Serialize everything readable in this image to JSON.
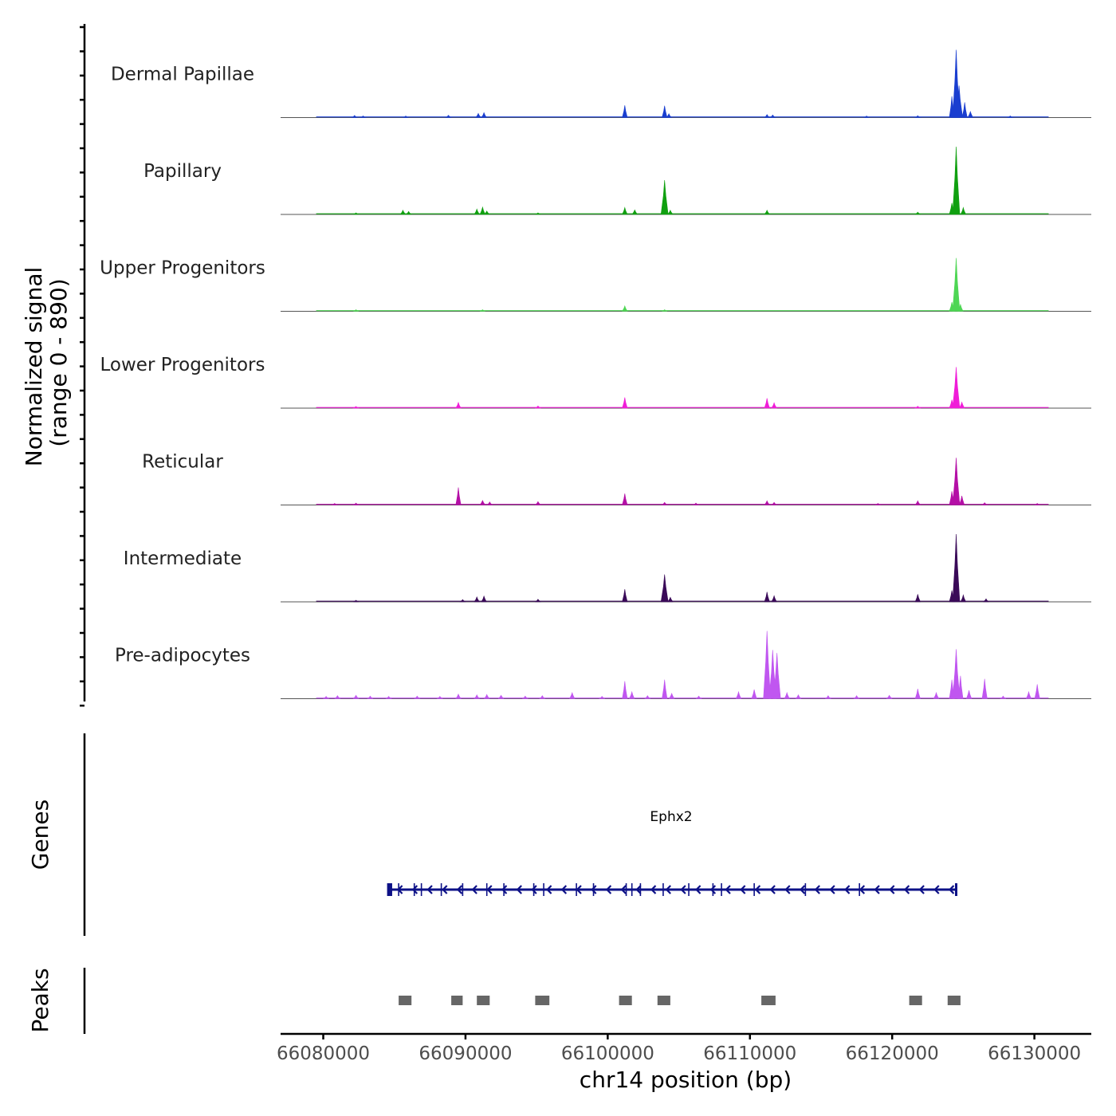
{
  "chart_data": {
    "type": "area",
    "title": "",
    "xlabel": "chr14 position (bp)",
    "ylabel": "Normalized signal",
    "ylabel_range": "(range 0 - 890)",
    "xlim": [
      66077000,
      66134000
    ],
    "ylim": [
      0,
      890
    ],
    "x_ticks": [
      66080000,
      66090000,
      66100000,
      66110000,
      66120000,
      66130000
    ],
    "x_tick_labels": [
      "66080000",
      "66090000",
      "66100000",
      "66110000",
      "66120000",
      "66130000"
    ],
    "series": [
      {
        "name": "Dermal Papillae",
        "color": "#1a3ed0",
        "peaks": [
          {
            "pos": 66082200,
            "value": 28
          },
          {
            "pos": 66082800,
            "value": 22
          },
          {
            "pos": 66085800,
            "value": 15
          },
          {
            "pos": 66088800,
            "value": 30
          },
          {
            "pos": 66090900,
            "value": 55
          },
          {
            "pos": 66091300,
            "value": 65
          },
          {
            "pos": 66101200,
            "value": 160
          },
          {
            "pos": 66104000,
            "value": 155
          },
          {
            "pos": 66104300,
            "value": 50
          },
          {
            "pos": 66111200,
            "value": 40
          },
          {
            "pos": 66111600,
            "value": 35
          },
          {
            "pos": 66118200,
            "value": 18
          },
          {
            "pos": 66121800,
            "value": 25
          },
          {
            "pos": 66124200,
            "value": 280
          },
          {
            "pos": 66124500,
            "value": 890
          },
          {
            "pos": 66124700,
            "value": 420
          },
          {
            "pos": 66125100,
            "value": 200
          },
          {
            "pos": 66125500,
            "value": 80
          },
          {
            "pos": 66128300,
            "value": 22
          }
        ]
      },
      {
        "name": "Papillary",
        "color": "#10a010",
        "peaks": [
          {
            "pos": 66082300,
            "value": 18
          },
          {
            "pos": 66085600,
            "value": 55
          },
          {
            "pos": 66086000,
            "value": 40
          },
          {
            "pos": 66090800,
            "value": 70
          },
          {
            "pos": 66091200,
            "value": 95
          },
          {
            "pos": 66091500,
            "value": 45
          },
          {
            "pos": 66095100,
            "value": 20
          },
          {
            "pos": 66101200,
            "value": 90
          },
          {
            "pos": 66101900,
            "value": 60
          },
          {
            "pos": 66104000,
            "value": 450
          },
          {
            "pos": 66104400,
            "value": 55
          },
          {
            "pos": 66111200,
            "value": 55
          },
          {
            "pos": 66121800,
            "value": 30
          },
          {
            "pos": 66124200,
            "value": 150
          },
          {
            "pos": 66124500,
            "value": 890
          },
          {
            "pos": 66125000,
            "value": 90
          }
        ]
      },
      {
        "name": "Upper Progenitors",
        "color": "#4ed654",
        "peaks": [
          {
            "pos": 66082300,
            "value": 12
          },
          {
            "pos": 66091200,
            "value": 15
          },
          {
            "pos": 66101200,
            "value": 70
          },
          {
            "pos": 66104000,
            "value": 18
          },
          {
            "pos": 66124200,
            "value": 120
          },
          {
            "pos": 66124500,
            "value": 700
          },
          {
            "pos": 66124800,
            "value": 90
          }
        ]
      },
      {
        "name": "Lower Progenitors",
        "color": "#f01cd8",
        "peaks": [
          {
            "pos": 66082300,
            "value": 22
          },
          {
            "pos": 66089500,
            "value": 75
          },
          {
            "pos": 66095100,
            "value": 28
          },
          {
            "pos": 66101200,
            "value": 140
          },
          {
            "pos": 66111200,
            "value": 130
          },
          {
            "pos": 66111700,
            "value": 70
          },
          {
            "pos": 66121800,
            "value": 25
          },
          {
            "pos": 66124200,
            "value": 110
          },
          {
            "pos": 66124500,
            "value": 540
          },
          {
            "pos": 66124900,
            "value": 80
          }
        ]
      },
      {
        "name": "Reticular",
        "color": "#b40fa6",
        "peaks": [
          {
            "pos": 66080800,
            "value": 18
          },
          {
            "pos": 66082300,
            "value": 25
          },
          {
            "pos": 66089500,
            "value": 230
          },
          {
            "pos": 66091200,
            "value": 60
          },
          {
            "pos": 66091700,
            "value": 40
          },
          {
            "pos": 66095100,
            "value": 45
          },
          {
            "pos": 66101200,
            "value": 150
          },
          {
            "pos": 66104000,
            "value": 35
          },
          {
            "pos": 66106200,
            "value": 25
          },
          {
            "pos": 66111200,
            "value": 55
          },
          {
            "pos": 66111700,
            "value": 35
          },
          {
            "pos": 66119000,
            "value": 18
          },
          {
            "pos": 66121800,
            "value": 55
          },
          {
            "pos": 66124200,
            "value": 180
          },
          {
            "pos": 66124500,
            "value": 620
          },
          {
            "pos": 66124900,
            "value": 120
          },
          {
            "pos": 66126500,
            "value": 30
          },
          {
            "pos": 66130200,
            "value": 15
          }
        ]
      },
      {
        "name": "Intermediate",
        "color": "#3a0a58",
        "peaks": [
          {
            "pos": 66082300,
            "value": 20
          },
          {
            "pos": 66089800,
            "value": 30
          },
          {
            "pos": 66090800,
            "value": 65
          },
          {
            "pos": 66091300,
            "value": 75
          },
          {
            "pos": 66095100,
            "value": 35
          },
          {
            "pos": 66101200,
            "value": 165
          },
          {
            "pos": 66104000,
            "value": 360
          },
          {
            "pos": 66104400,
            "value": 60
          },
          {
            "pos": 66111200,
            "value": 130
          },
          {
            "pos": 66111700,
            "value": 80
          },
          {
            "pos": 66121800,
            "value": 100
          },
          {
            "pos": 66124200,
            "value": 150
          },
          {
            "pos": 66124500,
            "value": 890
          },
          {
            "pos": 66125000,
            "value": 90
          },
          {
            "pos": 66126600,
            "value": 40
          }
        ]
      },
      {
        "name": "Pre-adipocytes",
        "color": "#c056f0",
        "peaks": [
          {
            "pos": 66080200,
            "value": 30
          },
          {
            "pos": 66081000,
            "value": 40
          },
          {
            "pos": 66082300,
            "value": 45
          },
          {
            "pos": 66083300,
            "value": 35
          },
          {
            "pos": 66084600,
            "value": 30
          },
          {
            "pos": 66086600,
            "value": 35
          },
          {
            "pos": 66088200,
            "value": 30
          },
          {
            "pos": 66089500,
            "value": 60
          },
          {
            "pos": 66090800,
            "value": 50
          },
          {
            "pos": 66091500,
            "value": 55
          },
          {
            "pos": 66092500,
            "value": 45
          },
          {
            "pos": 66094200,
            "value": 35
          },
          {
            "pos": 66095400,
            "value": 40
          },
          {
            "pos": 66097500,
            "value": 80
          },
          {
            "pos": 66099600,
            "value": 30
          },
          {
            "pos": 66101200,
            "value": 230
          },
          {
            "pos": 66101700,
            "value": 90
          },
          {
            "pos": 66102800,
            "value": 40
          },
          {
            "pos": 66104000,
            "value": 250
          },
          {
            "pos": 66104500,
            "value": 70
          },
          {
            "pos": 66106400,
            "value": 35
          },
          {
            "pos": 66109200,
            "value": 90
          },
          {
            "pos": 66110300,
            "value": 120
          },
          {
            "pos": 66111200,
            "value": 890
          },
          {
            "pos": 66111600,
            "value": 640
          },
          {
            "pos": 66111900,
            "value": 600
          },
          {
            "pos": 66112600,
            "value": 80
          },
          {
            "pos": 66113400,
            "value": 50
          },
          {
            "pos": 66115500,
            "value": 40
          },
          {
            "pos": 66117500,
            "value": 40
          },
          {
            "pos": 66119800,
            "value": 45
          },
          {
            "pos": 66121800,
            "value": 130
          },
          {
            "pos": 66123100,
            "value": 80
          },
          {
            "pos": 66124200,
            "value": 250
          },
          {
            "pos": 66124500,
            "value": 650
          },
          {
            "pos": 66124800,
            "value": 300
          },
          {
            "pos": 66125400,
            "value": 110
          },
          {
            "pos": 66126500,
            "value": 260
          },
          {
            "pos": 66127800,
            "value": 35
          },
          {
            "pos": 66129600,
            "value": 90
          },
          {
            "pos": 66130200,
            "value": 190
          }
        ]
      }
    ],
    "genes": {
      "label": "Genes",
      "name": "Ephx2",
      "strand": "-",
      "start": 66084600,
      "end": 66124500,
      "color": "#0d1187",
      "exons": [
        66084600,
        66084800,
        66085300,
        66086400,
        66086900,
        66088300,
        66089800,
        66091500,
        66092700,
        66094800,
        66095500,
        66097800,
        66099000,
        66101300,
        66101700,
        66102300,
        66103900,
        66105700,
        66107400,
        66108000,
        66110300,
        66113900,
        66117700
      ]
    },
    "peaks": {
      "label": "Peaks",
      "color": "#666666",
      "regions": [
        [
          66085300,
          66086200
        ],
        [
          66089000,
          66089800
        ],
        [
          66090800,
          66091700
        ],
        [
          66094900,
          66095900
        ],
        [
          66100800,
          66101700
        ],
        [
          66103500,
          66104400
        ],
        [
          66110800,
          66111800
        ],
        [
          66121200,
          66122100
        ],
        [
          66123900,
          66124800
        ]
      ]
    }
  }
}
